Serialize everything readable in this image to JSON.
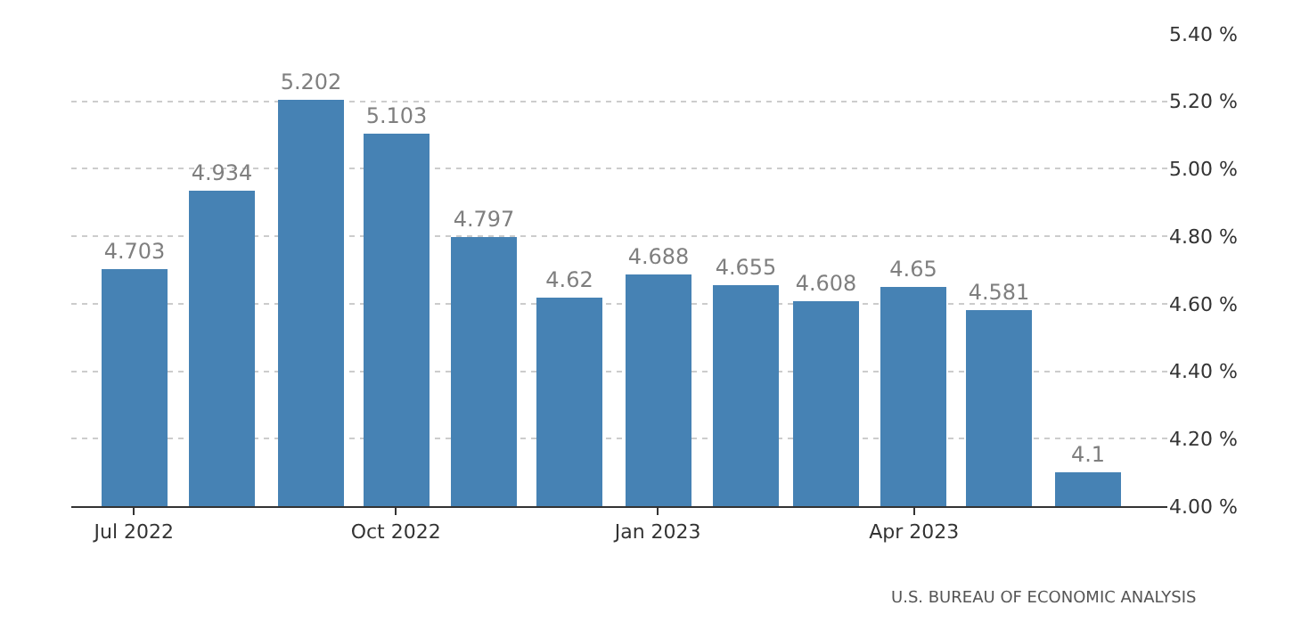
{
  "chart_data": {
    "type": "bar",
    "x": [
      "2022-07-01",
      "2022-08-01",
      "2022-09-01",
      "2022-10-01",
      "2022-11-01",
      "2022-12-01",
      "2023-01-01",
      "2023-02-01",
      "2023-03-01",
      "2023-04-01",
      "2023-05-01",
      "2023-06-01"
    ],
    "values": [
      4.703,
      4.934,
      5.202,
      5.103,
      4.797,
      4.62,
      4.688,
      4.655,
      4.608,
      4.65,
      4.581,
      4.1
    ],
    "color": "#4682b4",
    "data_labels": true,
    "xlim": [
      "2022-06-09",
      "2023-06-29"
    ],
    "xticks": [
      {
        "value": "2022-07-01",
        "label": "Jul 2022"
      },
      {
        "value": "2022-10-01",
        "label": "Oct 2022"
      },
      {
        "value": "2023-01-01",
        "label": "Jan 2023"
      },
      {
        "value": "2023-04-01",
        "label": "Apr 2023"
      }
    ],
    "ylim": [
      4.0,
      5.4
    ],
    "yticks": [
      {
        "value": 4.0,
        "label": "4.00 %"
      },
      {
        "value": 4.2,
        "label": "4.20 %"
      },
      {
        "value": 4.4,
        "label": "4.40 %"
      },
      {
        "value": 4.6,
        "label": "4.60 %"
      },
      {
        "value": 4.8,
        "label": "4.80 %"
      },
      {
        "value": 5.0,
        "label": "5.00 %"
      },
      {
        "value": 5.2,
        "label": "5.20 %"
      },
      {
        "value": 5.4,
        "label": "5.40 %"
      }
    ],
    "grid": "y",
    "annotations": [
      "U.S. BUREAU OF ECONOMIC ANALYSIS"
    ]
  }
}
